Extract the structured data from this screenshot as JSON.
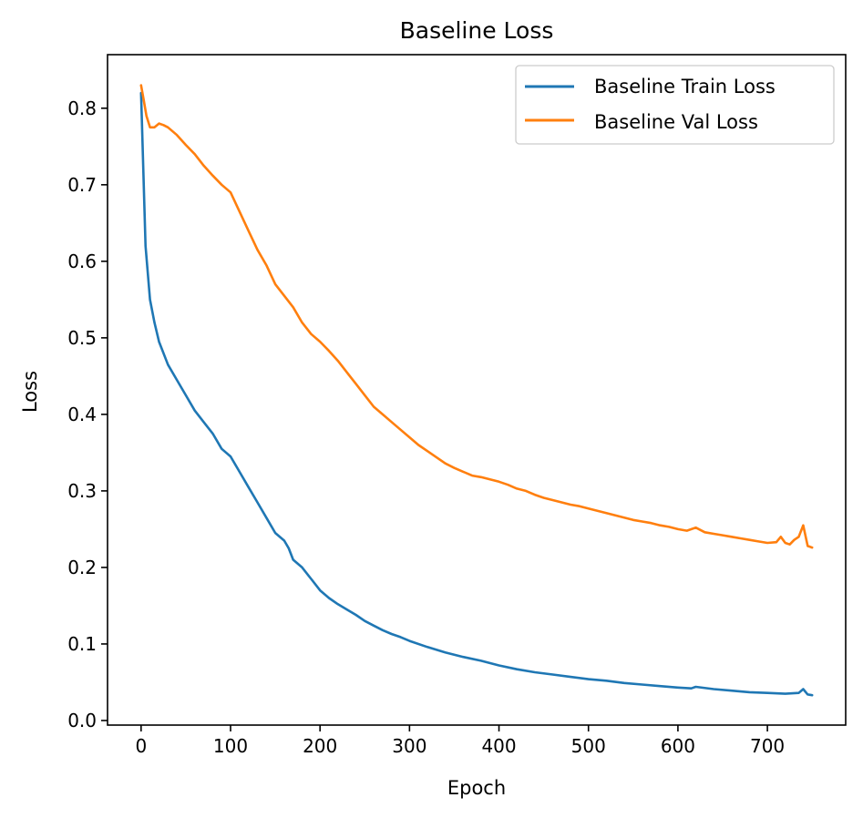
{
  "chart_data": {
    "type": "line",
    "title": "Baseline Loss",
    "xlabel": "Epoch",
    "ylabel": "Loss",
    "xlim": [
      -37.5,
      787.5
    ],
    "ylim": [
      -0.006,
      0.87
    ],
    "xticks": [
      0,
      100,
      200,
      300,
      400,
      500,
      600,
      700
    ],
    "xtick_labels": [
      "0",
      "100",
      "200",
      "300",
      "400",
      "500",
      "600",
      "700"
    ],
    "yticks": [
      0.0,
      0.1,
      0.2,
      0.3,
      0.4,
      0.5,
      0.6,
      0.7,
      0.8
    ],
    "ytick_labels": [
      "0.0",
      "0.1",
      "0.2",
      "0.3",
      "0.4",
      "0.5",
      "0.6",
      "0.7",
      "0.8"
    ],
    "grid": false,
    "legend_position": "upper-right",
    "series": [
      {
        "name": "Baseline Train Loss",
        "color": "#1f77b4",
        "x": [
          0,
          5,
          10,
          15,
          20,
          30,
          40,
          50,
          60,
          70,
          80,
          90,
          100,
          110,
          120,
          130,
          140,
          150,
          160,
          165,
          170,
          180,
          190,
          200,
          210,
          220,
          230,
          240,
          250,
          260,
          270,
          280,
          290,
          300,
          320,
          340,
          360,
          380,
          400,
          420,
          440,
          460,
          480,
          500,
          520,
          540,
          560,
          580,
          600,
          615,
          620,
          640,
          660,
          680,
          700,
          720,
          735,
          740,
          745,
          750
        ],
        "y": [
          0.82,
          0.62,
          0.55,
          0.52,
          0.495,
          0.465,
          0.445,
          0.425,
          0.405,
          0.39,
          0.375,
          0.355,
          0.345,
          0.325,
          0.305,
          0.285,
          0.265,
          0.245,
          0.235,
          0.225,
          0.21,
          0.2,
          0.185,
          0.17,
          0.16,
          0.152,
          0.145,
          0.138,
          0.13,
          0.124,
          0.118,
          0.113,
          0.109,
          0.104,
          0.096,
          0.089,
          0.083,
          0.078,
          0.072,
          0.067,
          0.063,
          0.06,
          0.057,
          0.054,
          0.052,
          0.049,
          0.047,
          0.045,
          0.043,
          0.042,
          0.044,
          0.041,
          0.039,
          0.037,
          0.036,
          0.035,
          0.036,
          0.041,
          0.034,
          0.033
        ]
      },
      {
        "name": "Baseline Val Loss",
        "color": "#ff7f0e",
        "x": [
          0,
          3,
          6,
          10,
          15,
          20,
          25,
          30,
          40,
          50,
          60,
          70,
          80,
          90,
          100,
          110,
          120,
          130,
          140,
          150,
          160,
          170,
          180,
          190,
          200,
          210,
          220,
          230,
          240,
          250,
          260,
          270,
          280,
          290,
          300,
          310,
          320,
          330,
          340,
          350,
          360,
          370,
          380,
          390,
          400,
          410,
          420,
          430,
          440,
          450,
          460,
          470,
          480,
          490,
          500,
          510,
          520,
          530,
          540,
          550,
          560,
          570,
          580,
          590,
          600,
          610,
          620,
          630,
          640,
          650,
          660,
          670,
          680,
          690,
          700,
          710,
          715,
          720,
          725,
          730,
          735,
          740,
          745,
          750
        ],
        "y": [
          0.83,
          0.81,
          0.79,
          0.775,
          0.775,
          0.78,
          0.778,
          0.775,
          0.765,
          0.752,
          0.74,
          0.725,
          0.712,
          0.7,
          0.69,
          0.665,
          0.64,
          0.615,
          0.595,
          0.57,
          0.555,
          0.54,
          0.52,
          0.505,
          0.495,
          0.483,
          0.47,
          0.455,
          0.44,
          0.425,
          0.41,
          0.4,
          0.39,
          0.38,
          0.37,
          0.36,
          0.352,
          0.344,
          0.336,
          0.33,
          0.325,
          0.32,
          0.318,
          0.315,
          0.312,
          0.308,
          0.303,
          0.3,
          0.295,
          0.291,
          0.288,
          0.285,
          0.282,
          0.28,
          0.277,
          0.274,
          0.271,
          0.268,
          0.265,
          0.262,
          0.26,
          0.258,
          0.255,
          0.253,
          0.25,
          0.248,
          0.252,
          0.246,
          0.244,
          0.242,
          0.24,
          0.238,
          0.236,
          0.234,
          0.232,
          0.233,
          0.24,
          0.232,
          0.23,
          0.236,
          0.24,
          0.255,
          0.228,
          0.226
        ]
      }
    ]
  }
}
